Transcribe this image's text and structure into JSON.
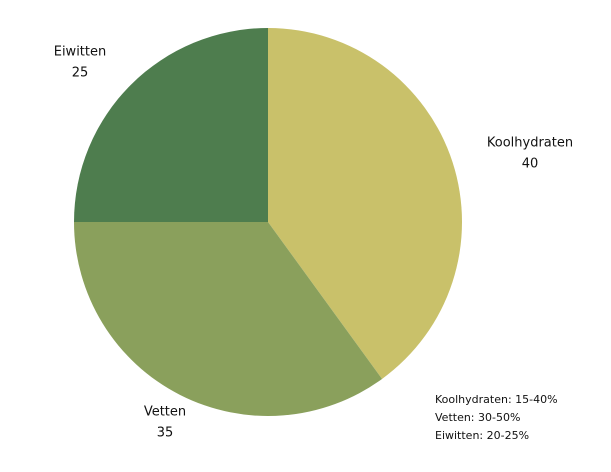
{
  "chart_data": {
    "type": "pie",
    "categories": [
      "Koolhydraten",
      "Vetten",
      "Eiwitten"
    ],
    "values": [
      40,
      35,
      25
    ],
    "colors": [
      "#c9c16a",
      "#8aa05c",
      "#4e7d4e"
    ],
    "annotation": [
      "Koolhydraten: 15-40%",
      "Vetten: 30-50%",
      "Eiwitten: 20-25%"
    ]
  }
}
